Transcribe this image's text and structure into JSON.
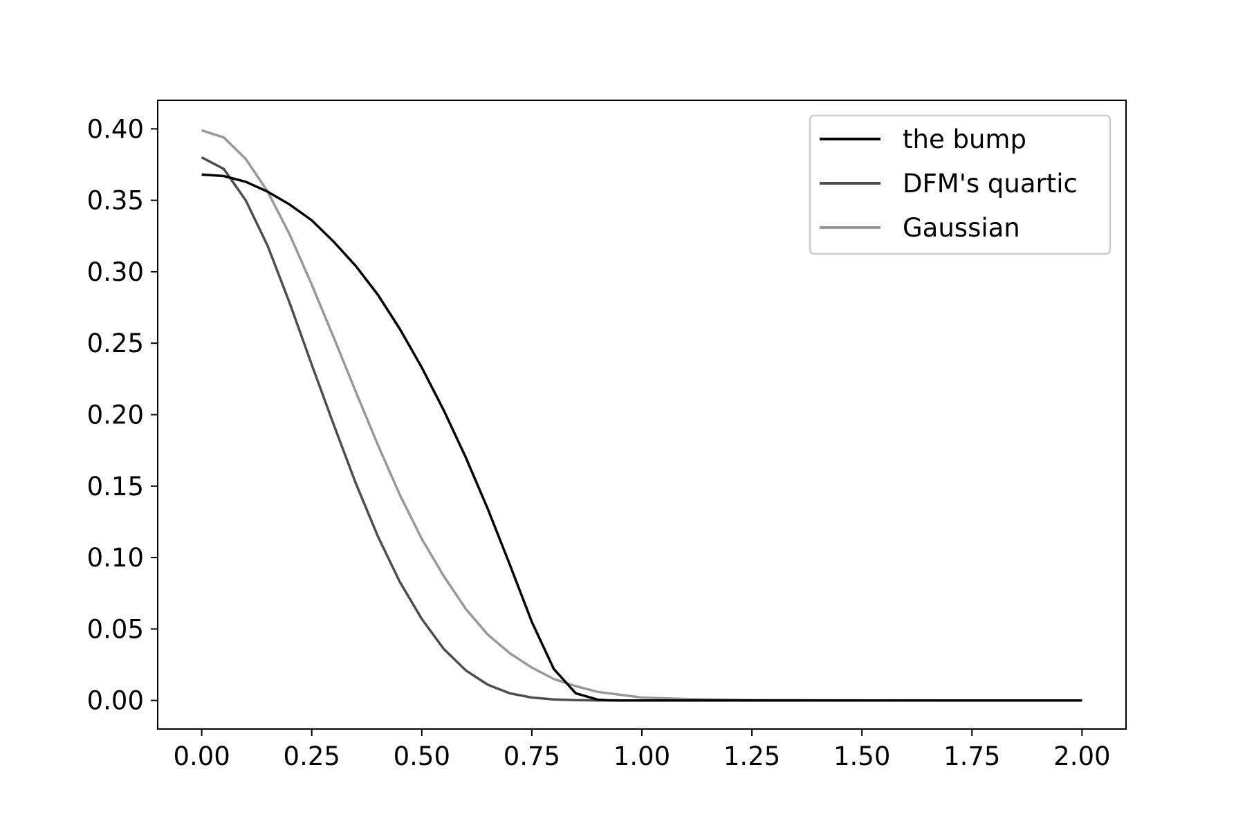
{
  "chart_data": {
    "type": "line",
    "title": "",
    "xlabel": "",
    "ylabel": "",
    "xlim": [
      -0.1,
      2.1
    ],
    "ylim": [
      -0.02,
      0.42
    ],
    "xticks": [
      "0.00",
      "0.25",
      "0.50",
      "0.75",
      "1.00",
      "1.25",
      "1.50",
      "1.75",
      "2.00"
    ],
    "yticks": [
      "0.00",
      "0.05",
      "0.10",
      "0.15",
      "0.20",
      "0.25",
      "0.30",
      "0.35",
      "0.40"
    ],
    "grid": false,
    "legend": "top-right",
    "series": [
      {
        "name": "the bump",
        "color": "#000000",
        "x": [
          0,
          0.05,
          0.1,
          0.15,
          0.2,
          0.25,
          0.3,
          0.35,
          0.4,
          0.45,
          0.5,
          0.55,
          0.6,
          0.65,
          0.7,
          0.75,
          0.8,
          0.85,
          0.9,
          0.925,
          0.95,
          1.0,
          1.25,
          1.5,
          1.75,
          2.0
        ],
        "y": [
          0.368,
          0.367,
          0.363,
          0.356,
          0.347,
          0.336,
          0.321,
          0.304,
          0.284,
          0.26,
          0.233,
          0.203,
          0.17,
          0.134,
          0.095,
          0.055,
          0.022,
          0.005,
          0.0005,
          0.0001,
          0.0,
          0.0,
          0.0,
          0.0,
          0.0,
          0.0
        ]
      },
      {
        "name": "DFM's quartic",
        "color": "#4d4d4d",
        "x": [
          0,
          0.05,
          0.1,
          0.15,
          0.2,
          0.25,
          0.3,
          0.35,
          0.4,
          0.45,
          0.5,
          0.55,
          0.6,
          0.65,
          0.7,
          0.75,
          0.8,
          0.85,
          0.9,
          0.95,
          1.0,
          1.25,
          1.5,
          1.75,
          2.0
        ],
        "y": [
          0.38,
          0.372,
          0.35,
          0.318,
          0.278,
          0.235,
          0.193,
          0.152,
          0.115,
          0.083,
          0.057,
          0.036,
          0.021,
          0.011,
          0.005,
          0.002,
          0.0007,
          0.0002,
          5e-05,
          0.0,
          0.0,
          0.0,
          0.0,
          0.0,
          0.0
        ]
      },
      {
        "name": "Gaussian",
        "color": "#999999",
        "x": [
          0,
          0.05,
          0.1,
          0.15,
          0.2,
          0.25,
          0.3,
          0.35,
          0.4,
          0.45,
          0.5,
          0.55,
          0.6,
          0.65,
          0.7,
          0.75,
          0.8,
          0.85,
          0.9,
          0.95,
          1.0,
          1.1,
          1.25,
          1.5,
          1.75,
          2.0
        ],
        "y": [
          0.399,
          0.394,
          0.379,
          0.356,
          0.326,
          0.291,
          0.254,
          0.216,
          0.179,
          0.144,
          0.113,
          0.087,
          0.064,
          0.046,
          0.033,
          0.023,
          0.015,
          0.01,
          0.006,
          0.004,
          0.002,
          0.001,
          0.0003,
          2e-05,
          0.0,
          0.0
        ]
      }
    ]
  }
}
